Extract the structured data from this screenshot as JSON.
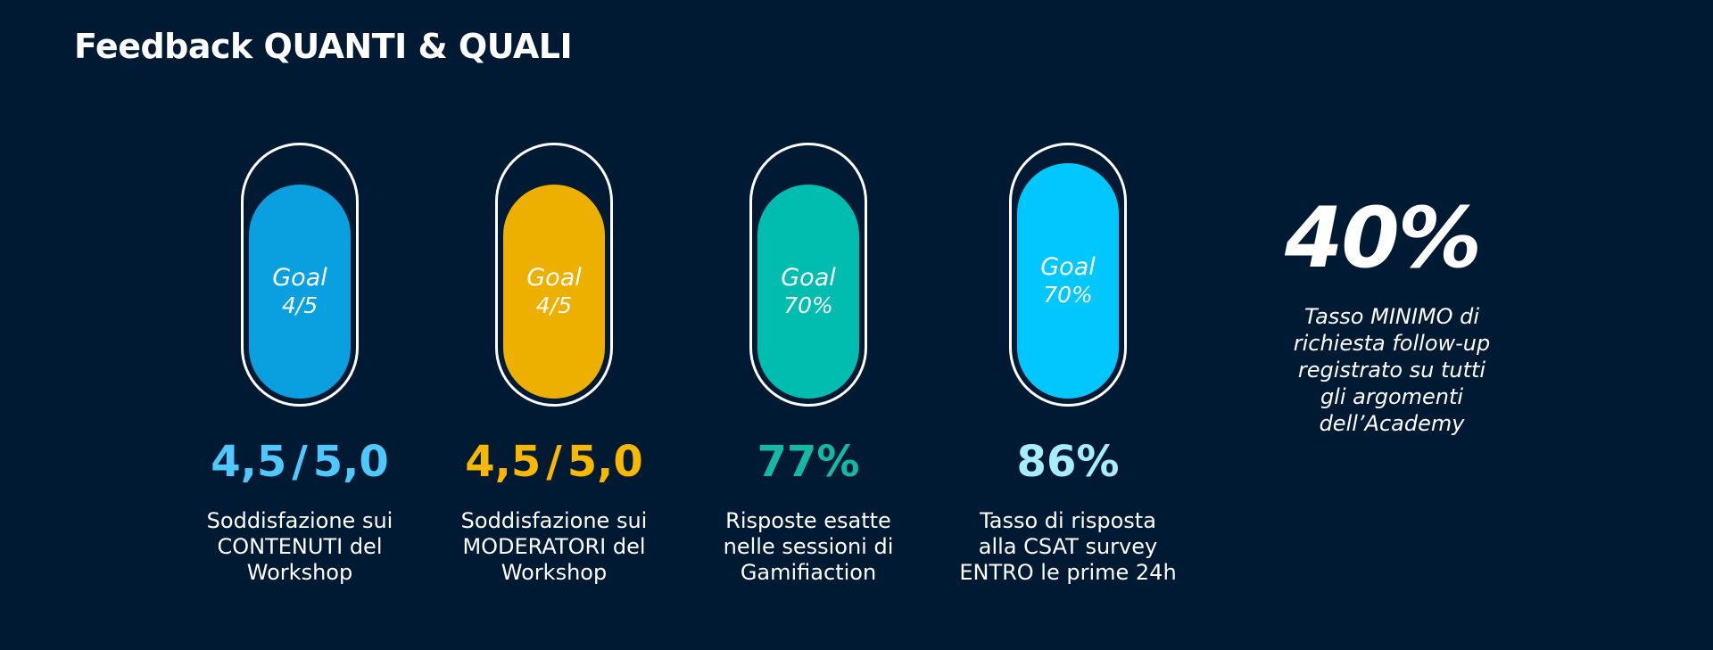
{
  "page": {
    "title": "Feedback QUANTI & QUALI"
  },
  "colors": {
    "background": "#001a33",
    "blue": "#0aa0e0",
    "yellow": "#edb000",
    "teal": "#00bdb0",
    "cyan": "#00c8ff",
    "result_blue": "#4fc8ff",
    "result_yellow": "#f6b800",
    "result_teal": "#14b8a6",
    "result_cyan": "#a8ecff"
  },
  "kpis": [
    {
      "goal_label": "Goal",
      "goal_value": "4/5",
      "fill_fraction": 0.9,
      "result_a": "4,5",
      "result_sep": "/",
      "result_b": "5,0",
      "desc_lines": [
        "Soddisfazione sui",
        "CONTENUTI del",
        "Workshop"
      ]
    },
    {
      "goal_label": "Goal",
      "goal_value": "4/5",
      "fill_fraction": 0.9,
      "result_a": "4,5",
      "result_sep": "/",
      "result_b": "5,0",
      "desc_lines": [
        "Soddisfazione sui",
        "MODERATORI del",
        "Workshop"
      ]
    },
    {
      "goal_label": "Goal",
      "goal_value": "70%",
      "fill_fraction": 0.77,
      "result": "77%",
      "desc_lines": [
        "Risposte esatte",
        "nelle sessioni di",
        "Gamifiaction"
      ]
    },
    {
      "goal_label": "Goal",
      "goal_value": "70%",
      "fill_fraction": 0.86,
      "result": "86%",
      "desc_lines": [
        "Tasso di risposta",
        "alla CSAT survey",
        "ENTRO le prime 24h"
      ]
    }
  ],
  "highlight": {
    "value": "40%",
    "desc_lines": [
      "Tasso MINIMO di",
      "richiesta follow-up",
      "registrato su tutti",
      "gli argomenti",
      "dell’Academy"
    ]
  }
}
